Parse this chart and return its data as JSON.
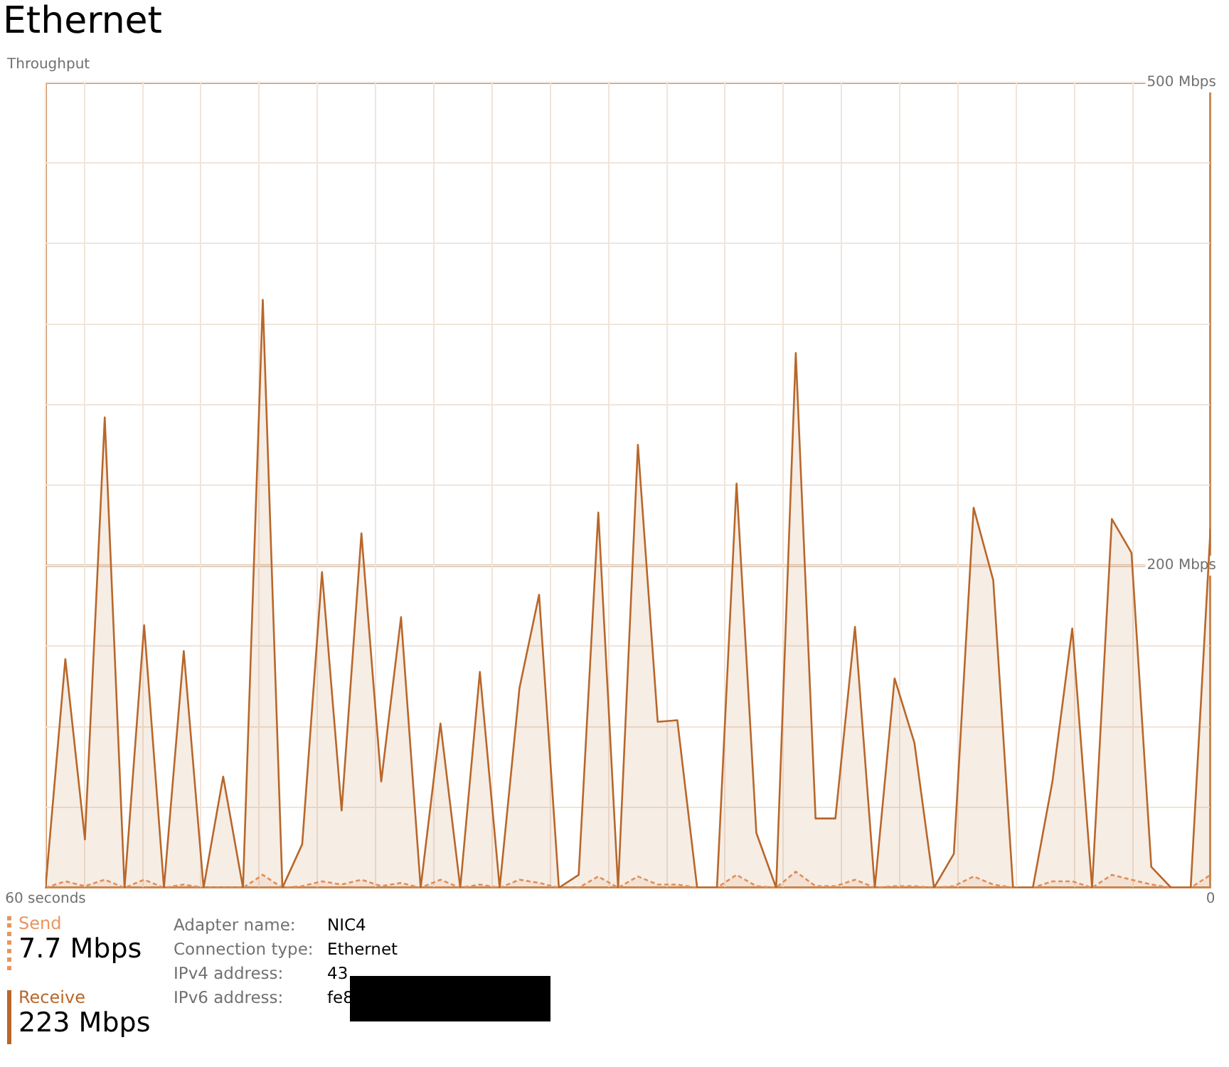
{
  "chart_data": {
    "type": "area",
    "title": "Ethernet",
    "ylabel": "Throughput",
    "x": [
      60,
      58.98,
      57.97,
      56.95,
      55.93,
      54.92,
      53.9,
      52.88,
      51.86,
      50.85,
      49.83,
      48.81,
      47.8,
      46.78,
      45.76,
      44.75,
      43.73,
      42.71,
      41.69,
      40.68,
      39.66,
      38.64,
      37.63,
      36.61,
      35.59,
      34.58,
      33.56,
      32.54,
      31.53,
      30.51,
      29.49,
      28.47,
      27.46,
      26.44,
      25.42,
      24.41,
      23.39,
      22.37,
      21.36,
      20.34,
      19.32,
      18.31,
      17.29,
      16.27,
      15.25,
      14.24,
      13.22,
      12.2,
      11.19,
      10.17,
      9.15,
      8.14,
      7.12,
      6.1,
      5.08,
      4.07,
      3.05,
      2.03,
      1.02,
      0
    ],
    "series": [
      {
        "name": "Send",
        "color": "#e8955f",
        "line_style": "dashed",
        "values": [
          0,
          4,
          1,
          5,
          0,
          5,
          0,
          2,
          0,
          0,
          0,
          8,
          0,
          1,
          4,
          2,
          5,
          1,
          3,
          0,
          5,
          0,
          2,
          0,
          5,
          3,
          0,
          0,
          7,
          0,
          7,
          2,
          2,
          0,
          0,
          8,
          1,
          0,
          10,
          1,
          1,
          5,
          0,
          1,
          1,
          0,
          1,
          7,
          2,
          0,
          0,
          4,
          4,
          0,
          8,
          5,
          2,
          0,
          0,
          8
        ]
      },
      {
        "name": "Receive",
        "color": "#b8672a",
        "values": [
          0,
          142,
          30,
          292,
          0,
          163,
          0,
          147,
          0,
          69,
          0,
          365,
          0,
          27,
          196,
          48,
          220,
          66,
          168,
          0,
          102,
          0,
          134,
          0,
          124,
          182,
          0,
          8,
          233,
          0,
          275,
          103,
          104,
          0,
          0,
          251,
          34,
          0,
          332,
          43,
          43,
          162,
          0,
          130,
          90,
          0,
          21,
          236,
          191,
          0,
          0,
          66,
          161,
          0,
          229,
          208,
          13,
          0,
          0,
          223
        ]
      }
    ],
    "xlim": [
      60,
      0
    ],
    "xticks": [
      {
        "value": 60,
        "label": "60 seconds"
      },
      {
        "value": 58,
        "label": null
      },
      {
        "value": 55,
        "label": null
      },
      {
        "value": 52,
        "label": null
      },
      {
        "value": 49,
        "label": null
      },
      {
        "value": 46,
        "label": null
      },
      {
        "value": 43,
        "label": null
      },
      {
        "value": 40,
        "label": null
      },
      {
        "value": 37,
        "label": null
      },
      {
        "value": 34,
        "label": null
      },
      {
        "value": 31,
        "label": null
      },
      {
        "value": 28,
        "label": null
      },
      {
        "value": 25,
        "label": null
      },
      {
        "value": 22,
        "label": null
      },
      {
        "value": 19,
        "label": null
      },
      {
        "value": 16,
        "label": null
      },
      {
        "value": 13,
        "label": null
      },
      {
        "value": 10,
        "label": null
      },
      {
        "value": 7,
        "label": null
      },
      {
        "value": 4,
        "label": null
      },
      {
        "value": 0,
        "label": "0"
      }
    ],
    "ylim": [
      0,
      500
    ],
    "yticks": [
      {
        "value": 0,
        "label": null
      },
      {
        "value": 50,
        "label": null
      },
      {
        "value": 100,
        "label": null
      },
      {
        "value": 150,
        "label": null
      },
      {
        "value": 200,
        "label": "200 Mbps"
      },
      {
        "value": 250,
        "label": null
      },
      {
        "value": 300,
        "label": null
      },
      {
        "value": 350,
        "label": null
      },
      {
        "value": 400,
        "label": null
      },
      {
        "value": 450,
        "label": null
      },
      {
        "value": 500,
        "label": "500 Mbps"
      }
    ],
    "ref_lines": [
      {
        "axis": "y",
        "value": 200,
        "color": "#d9c2ae"
      }
    ],
    "grid": true,
    "legend": "bottom",
    "annotations": [
      "7.7 Mbps",
      "223 Mbps",
      "Adapter name:",
      "NIC4",
      "Connection type:",
      "Ethernet",
      "IPv4 address:",
      "43",
      "IPv6 address:",
      "fe8"
    ]
  }
}
